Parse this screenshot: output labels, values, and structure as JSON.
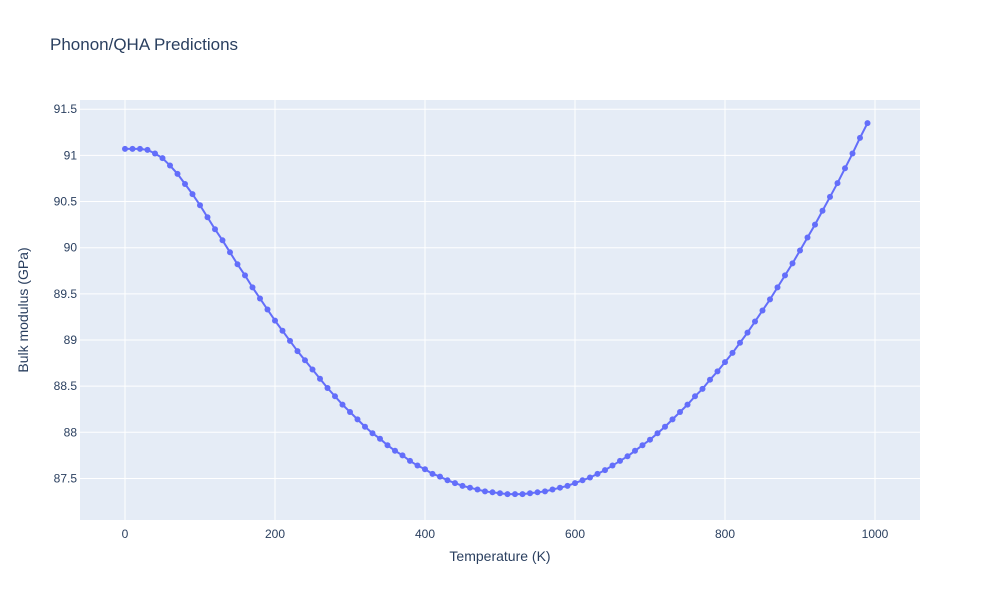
{
  "chart_data": {
    "type": "line",
    "title": "Phonon/QHA Predictions",
    "xlabel": "Temperature (K)",
    "ylabel": "Bulk modulus (GPa)",
    "xlim": [
      -60,
      1060
    ],
    "ylim": [
      87.05,
      91.6
    ],
    "x_ticks": [
      0,
      200,
      400,
      600,
      800,
      1000
    ],
    "y_ticks": [
      87.5,
      88,
      88.5,
      89,
      89.5,
      90,
      90.5,
      91,
      91.5
    ],
    "x_tick_labels": [
      "0",
      "200",
      "400",
      "600",
      "800",
      "1000"
    ],
    "y_tick_labels": [
      "87.5",
      "88",
      "88.5",
      "89",
      "89.5",
      "90",
      "90.5",
      "91",
      "91.5"
    ],
    "grid": true,
    "colors": {
      "series": "#636efa",
      "plot_bg": "#e5ecf6",
      "grid": "#ffffff",
      "text": "#2a3f5f"
    },
    "series": [
      {
        "mode": "lines+markers",
        "x": [
          0,
          10,
          20,
          30,
          40,
          50,
          60,
          70,
          80,
          90,
          100,
          110,
          120,
          130,
          140,
          150,
          160,
          170,
          180,
          190,
          200,
          210,
          220,
          230,
          240,
          250,
          260,
          270,
          280,
          290,
          300,
          310,
          320,
          330,
          340,
          350,
          360,
          370,
          380,
          390,
          400,
          410,
          420,
          430,
          440,
          450,
          460,
          470,
          480,
          490,
          500,
          510,
          520,
          530,
          540,
          550,
          560,
          570,
          580,
          590,
          600,
          610,
          620,
          630,
          640,
          650,
          660,
          670,
          680,
          690,
          700,
          710,
          720,
          730,
          740,
          750,
          760,
          770,
          780,
          790,
          800,
          810,
          820,
          830,
          840,
          850,
          860,
          870,
          880,
          890,
          900,
          910,
          920,
          930,
          940,
          950,
          960,
          970,
          980,
          990
        ],
        "y": [
          91.07,
          91.07,
          91.07,
          91.06,
          91.02,
          90.97,
          90.89,
          90.8,
          90.69,
          90.58,
          90.46,
          90.33,
          90.2,
          90.08,
          89.95,
          89.82,
          89.7,
          89.57,
          89.45,
          89.33,
          89.21,
          89.1,
          88.99,
          88.88,
          88.78,
          88.68,
          88.58,
          88.48,
          88.39,
          88.3,
          88.22,
          88.14,
          88.06,
          87.99,
          87.93,
          87.86,
          87.8,
          87.75,
          87.69,
          87.64,
          87.6,
          87.55,
          87.52,
          87.48,
          87.45,
          87.42,
          87.4,
          87.38,
          87.36,
          87.35,
          87.34,
          87.33,
          87.33,
          87.33,
          87.34,
          87.35,
          87.36,
          87.38,
          87.4,
          87.42,
          87.45,
          87.48,
          87.51,
          87.55,
          87.59,
          87.64,
          87.69,
          87.74,
          87.8,
          87.86,
          87.92,
          87.99,
          88.06,
          88.14,
          88.22,
          88.3,
          88.39,
          88.47,
          88.57,
          88.66,
          88.76,
          88.86,
          88.97,
          89.08,
          89.2,
          89.32,
          89.44,
          89.57,
          89.7,
          89.83,
          89.97,
          90.11,
          90.25,
          90.4,
          90.55,
          90.7,
          90.86,
          91.02,
          91.19,
          91.35
        ]
      }
    ]
  }
}
